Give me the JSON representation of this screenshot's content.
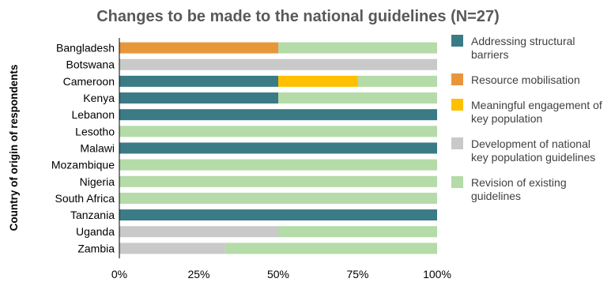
{
  "chart_data": {
    "type": "bar",
    "orientation": "horizontal",
    "stacked": "percent",
    "title": "Changes to be made to the national guidelines (N=27)",
    "xlabel": "",
    "ylabel": "Country of origin of respondents",
    "xlim": [
      0,
      100
    ],
    "x_ticks": [
      "0%",
      "25%",
      "50%",
      "75%",
      "100%"
    ],
    "grid": false,
    "legend_position": "right",
    "categories": [
      "Bangladesh",
      "Botswana",
      "Cameroon",
      "Kenya",
      "Lebanon",
      "Lesotho",
      "Malawi",
      "Mozambique",
      "Nigeria",
      "South Africa",
      "Tanzania",
      "Uganda",
      "Zambia"
    ],
    "series": [
      {
        "name": "Addressing structural barriers",
        "color": "#3B7B86",
        "values": [
          0,
          0,
          50,
          50,
          100,
          0,
          100,
          0,
          0,
          0,
          100,
          0,
          0
        ]
      },
      {
        "name": "Resource mobilisation",
        "color": "#E8963A",
        "values": [
          50,
          0,
          0,
          0,
          0,
          0,
          0,
          0,
          0,
          0,
          0,
          0,
          0
        ]
      },
      {
        "name": "Meaningful engagement of key population",
        "color": "#FFC000",
        "values": [
          0,
          0,
          25,
          0,
          0,
          0,
          0,
          0,
          0,
          0,
          0,
          0,
          0
        ]
      },
      {
        "name": "Development of national key population guidelines",
        "color": "#C9C9C9",
        "values": [
          0,
          100,
          0,
          0,
          0,
          0,
          0,
          0,
          0,
          0,
          0,
          50,
          33.3
        ]
      },
      {
        "name": "Revision of existing guidelines",
        "color": "#B4DBA8",
        "values": [
          50,
          0,
          25,
          50,
          0,
          100,
          0,
          100,
          100,
          100,
          0,
          50,
          66.7
        ]
      }
    ]
  }
}
